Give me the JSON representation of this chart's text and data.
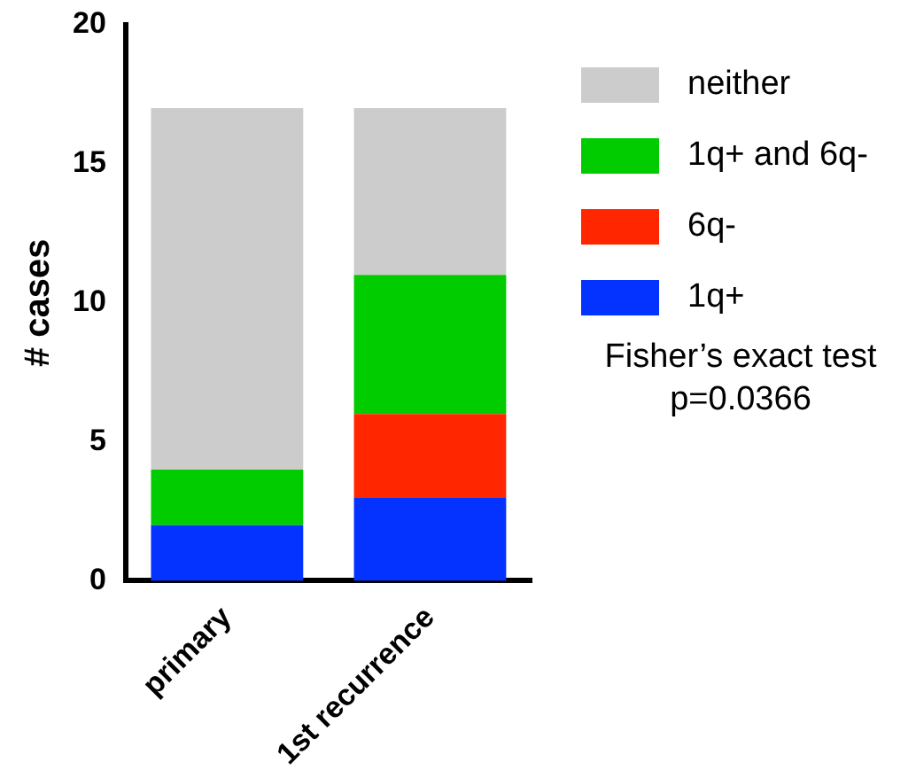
{
  "chart_data": {
    "type": "bar",
    "stacked": true,
    "ylabel": "# cases",
    "categories": [
      "primary",
      "1st recurrence"
    ],
    "series": [
      {
        "name": "1q+",
        "color": "#0433ff",
        "values": [
          2,
          3
        ]
      },
      {
        "name": "6q-",
        "color": "#ff2600",
        "values": [
          0,
          3
        ]
      },
      {
        "name": "1q+ and 6q-",
        "color": "#00cc00",
        "values": [
          2,
          5
        ]
      },
      {
        "name": "neither",
        "color": "#cccccc",
        "values": [
          13,
          6
        ]
      }
    ],
    "ylim": [
      0,
      20
    ],
    "yticks": [
      0,
      5,
      10,
      15,
      20
    ],
    "grid": false,
    "legend": "top right",
    "annotations": [
      "Fisher’s exact test\np=0.0366"
    ]
  }
}
